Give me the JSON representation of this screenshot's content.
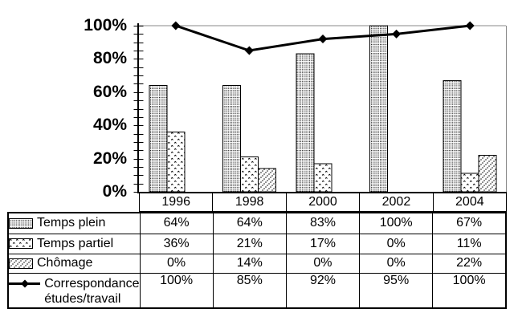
{
  "chart_data": {
    "type": "bar+line",
    "categories": [
      "1996",
      "1998",
      "2000",
      "2002",
      "2004"
    ],
    "series": [
      {
        "name": "Temps plein",
        "type": "bar",
        "pattern": "dense-dots",
        "values": [
          64,
          64,
          83,
          100,
          67
        ]
      },
      {
        "name": "Temps partiel",
        "type": "bar",
        "pattern": "diamond-specks",
        "values": [
          36,
          21,
          17,
          0,
          11
        ]
      },
      {
        "name": "Chômage",
        "type": "bar",
        "pattern": "diagonal-dots",
        "values": [
          0,
          14,
          0,
          0,
          22
        ]
      },
      {
        "name": "Correspondance études/travail",
        "type": "line",
        "marker": "diamond",
        "values": [
          100,
          85,
          92,
          95,
          100
        ]
      }
    ],
    "y_axis": {
      "min": 0,
      "max": 100,
      "major_step": 20,
      "minor_step": 5,
      "unit": "%",
      "tick_labels": [
        "100%",
        "80%",
        "60%",
        "40%",
        "20%",
        "0%"
      ]
    },
    "gridlines": [
      "100%"
    ],
    "legend_position": "table-left-column",
    "title": "",
    "xlabel": "",
    "ylabel": ""
  },
  "table": {
    "header_years": [
      "1996",
      "1998",
      "2000",
      "2002",
      "2004"
    ],
    "rows": [
      {
        "label": "Temps plein",
        "swatch": "dense-dots",
        "values": [
          "64%",
          "64%",
          "83%",
          "100%",
          "67%"
        ]
      },
      {
        "label": "Temps partiel",
        "swatch": "diamond-specks",
        "values": [
          "36%",
          "21%",
          "17%",
          "0%",
          "11%"
        ]
      },
      {
        "label": "Chômage",
        "swatch": "diagonal-dots",
        "values": [
          "0%",
          "14%",
          "0%",
          "0%",
          "22%"
        ]
      },
      {
        "label": "Correspondance études/travail",
        "label_lines": [
          "Correspondance",
          "études/travail"
        ],
        "swatch": "line-diamond",
        "values": [
          "100%",
          "85%",
          "92%",
          "95%",
          "100%"
        ]
      }
    ]
  },
  "colors": {
    "ink": "#000000",
    "gridline": "#8a8a8a",
    "background": "#ffffff"
  }
}
